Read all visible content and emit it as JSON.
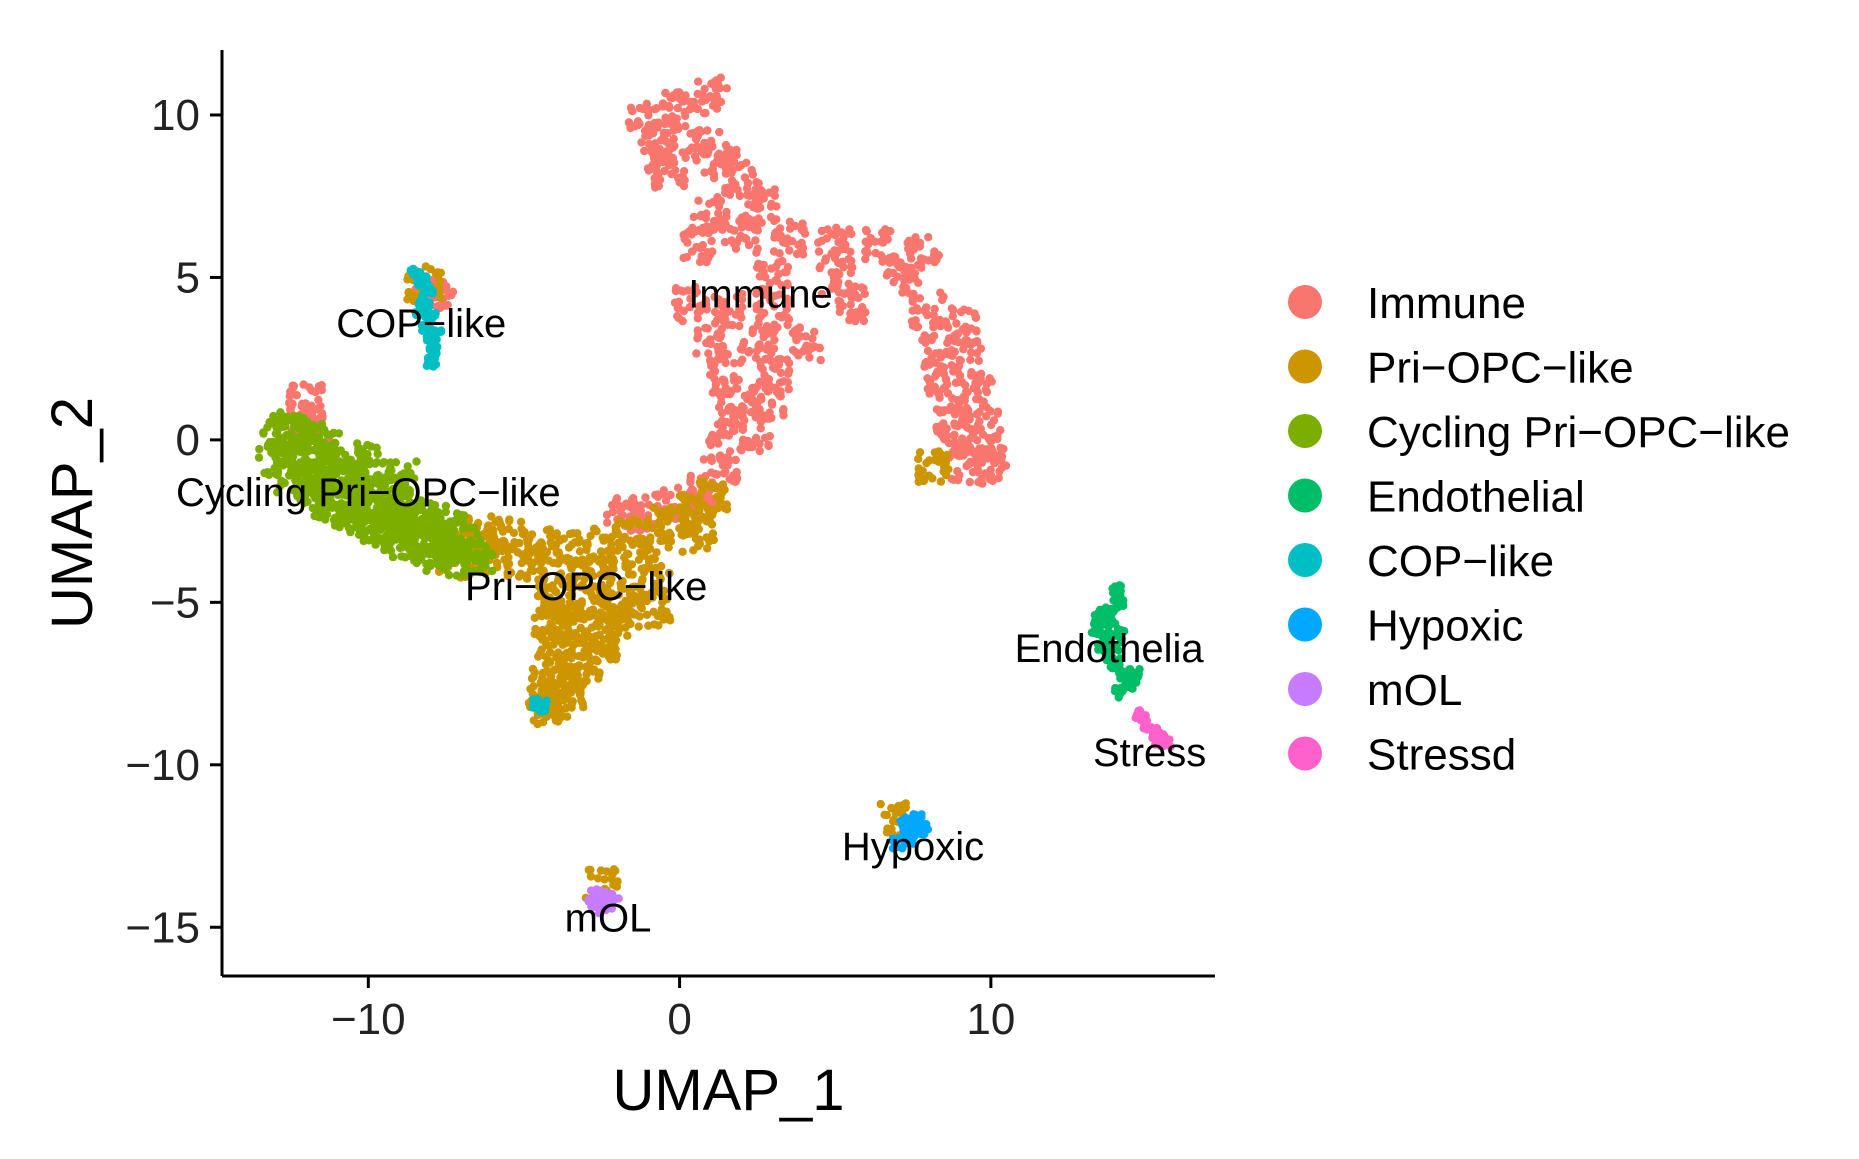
{
  "chart_data": {
    "type": "scatter",
    "title": "",
    "xlabel": "UMAP_1",
    "ylabel": "UMAP_2",
    "xlim": [
      -14.7,
      17.2
    ],
    "ylim": [
      -16.5,
      12.0
    ],
    "xticks": [
      -10,
      0,
      10
    ],
    "yticks": [
      10,
      5,
      0,
      -5,
      -10,
      -15
    ],
    "xtick_labels": [
      "−10",
      "0",
      "10"
    ],
    "ytick_labels": [
      "10",
      "5",
      "0",
      "−5",
      "−10",
      "−15"
    ],
    "legend_position": "right",
    "grid": false,
    "series": [
      {
        "name": "Immune",
        "color": "#F8766D",
        "approx_points": [
          [
            -1.2,
            9.8
          ],
          [
            0.0,
            10.2
          ],
          [
            1.0,
            10.6
          ],
          [
            0.8,
            9.0
          ],
          [
            -0.5,
            9.3
          ],
          [
            1.3,
            8.6
          ],
          [
            2.0,
            8.0
          ],
          [
            2.6,
            7.2
          ],
          [
            1.0,
            7.0
          ],
          [
            0.6,
            6.0
          ],
          [
            2.0,
            6.3
          ],
          [
            3.5,
            6.2
          ],
          [
            5.0,
            6.1
          ],
          [
            6.5,
            6.0
          ],
          [
            7.8,
            5.8
          ],
          [
            3.0,
            5.0
          ],
          [
            5.0,
            5.0
          ],
          [
            7.2,
            5.0
          ],
          [
            0.4,
            4.2
          ],
          [
            1.5,
            4.0
          ],
          [
            3.0,
            4.0
          ],
          [
            5.5,
            4.2
          ],
          [
            8.0,
            4.0
          ],
          [
            9.0,
            3.5
          ],
          [
            1.0,
            3.0
          ],
          [
            2.5,
            3.0
          ],
          [
            4.0,
            3.0
          ],
          [
            8.3,
            2.8
          ],
          [
            9.2,
            2.5
          ],
          [
            1.5,
            2.0
          ],
          [
            3.0,
            2.0
          ],
          [
            8.5,
            1.8
          ],
          [
            9.5,
            1.5
          ],
          [
            1.8,
            1.0
          ],
          [
            2.8,
            1.2
          ],
          [
            8.8,
            0.8
          ],
          [
            9.7,
            0.5
          ],
          [
            1.5,
            0.0
          ],
          [
            2.5,
            0.2
          ],
          [
            8.8,
            0.0
          ],
          [
            9.8,
            -0.2
          ],
          [
            9.2,
            -0.8
          ],
          [
            10.0,
            -0.8
          ],
          [
            1.3,
            -1.0
          ],
          [
            0.8,
            -1.5
          ],
          [
            0.0,
            -2.0
          ],
          [
            -1.2,
            -2.2
          ],
          [
            -1.8,
            -2.3
          ],
          [
            -12.0,
            1.2
          ],
          [
            -12.2,
            0.6
          ],
          [
            -11.8,
            0.4
          ],
          [
            -8.0,
            4.4
          ],
          [
            -7.8,
            4.6
          ],
          [
            -0.7,
            8.7
          ],
          [
            -0.3,
            8.3
          ]
        ],
        "label": "Immune",
        "label_pos": [
          2.6,
          4.5
        ]
      },
      {
        "name": "Pri−OPC−like",
        "color": "#CD9600",
        "approx_points": [
          [
            1.0,
            -1.8
          ],
          [
            0.5,
            -2.2
          ],
          [
            -0.5,
            -2.6
          ],
          [
            -1.5,
            -3.0
          ],
          [
            -2.5,
            -3.2
          ],
          [
            -3.5,
            -3.4
          ],
          [
            -4.5,
            -3.3
          ],
          [
            -5.5,
            -3.0
          ],
          [
            -6.5,
            -2.9
          ],
          [
            -7.0,
            -3.2
          ],
          [
            0.6,
            -3.0
          ],
          [
            -0.8,
            -3.6
          ],
          [
            -2.0,
            -4.0
          ],
          [
            -3.0,
            -4.2
          ],
          [
            -4.0,
            -4.0
          ],
          [
            -5.0,
            -3.8
          ],
          [
            -6.0,
            -3.6
          ],
          [
            -7.2,
            -3.7
          ],
          [
            -1.0,
            -4.5
          ],
          [
            -2.0,
            -5.0
          ],
          [
            -3.0,
            -5.0
          ],
          [
            -4.0,
            -4.8
          ],
          [
            -0.8,
            -5.2
          ],
          [
            -1.8,
            -5.5
          ],
          [
            -2.6,
            -5.8
          ],
          [
            -3.6,
            -5.6
          ],
          [
            -4.2,
            -5.5
          ],
          [
            -2.5,
            -6.3
          ],
          [
            -3.4,
            -6.5
          ],
          [
            -4.0,
            -6.4
          ],
          [
            -3.0,
            -7.0
          ],
          [
            -3.8,
            -7.2
          ],
          [
            -4.2,
            -7.6
          ],
          [
            -4.0,
            -8.0
          ],
          [
            -3.6,
            -7.8
          ],
          [
            -4.3,
            -8.2
          ],
          [
            8.2,
            -0.9
          ],
          [
            7.0,
            -11.7
          ],
          [
            -2.5,
            -13.7
          ],
          [
            -8.2,
            4.8
          ]
        ],
        "label": "Pri−OPC−like",
        "label_pos": [
          -3.0,
          -4.5
        ]
      },
      {
        "name": "Cycling Pri−OPC−like",
        "color": "#7CAE00",
        "approx_points": [
          [
            -13.0,
            0.0
          ],
          [
            -12.5,
            -0.5
          ],
          [
            -12.0,
            -0.8
          ],
          [
            -11.5,
            -1.2
          ],
          [
            -11.0,
            -1.5
          ],
          [
            -10.5,
            -1.8
          ],
          [
            -10.0,
            -2.1
          ],
          [
            -9.5,
            -2.3
          ],
          [
            -9.0,
            -2.5
          ],
          [
            -8.5,
            -2.7
          ],
          [
            -8.0,
            -2.9
          ],
          [
            -7.5,
            -3.0
          ],
          [
            -7.0,
            -3.2
          ],
          [
            -6.5,
            -3.5
          ],
          [
            -12.8,
            -0.6
          ],
          [
            -12.2,
            0.2
          ],
          [
            -11.6,
            -0.2
          ],
          [
            -11.0,
            -0.8
          ],
          [
            -10.4,
            -1.1
          ],
          [
            -9.8,
            -1.5
          ],
          [
            -9.2,
            -1.8
          ],
          [
            -8.6,
            -2.2
          ],
          [
            -8.0,
            -2.4
          ],
          [
            -7.4,
            -2.6
          ],
          [
            -12.4,
            -1.2
          ],
          [
            -11.8,
            -1.6
          ],
          [
            -11.2,
            -2.0
          ],
          [
            -10.6,
            -2.3
          ],
          [
            -10.0,
            -2.6
          ],
          [
            -9.4,
            -2.9
          ],
          [
            -8.8,
            -3.1
          ],
          [
            -8.2,
            -3.3
          ],
          [
            -7.6,
            -3.5
          ],
          [
            -7.0,
            -3.7
          ],
          [
            -12.6,
            0.3
          ],
          [
            -11.4,
            0.0
          ],
          [
            -10.2,
            -0.6
          ],
          [
            -9.0,
            -1.2
          ]
        ],
        "label": "Cycling Pri−OPC−like",
        "label_pos": [
          -10.0,
          -1.6
        ]
      },
      {
        "name": "Endothelial",
        "color": "#00BE67",
        "approx_points": [
          [
            14.0,
            -4.6
          ],
          [
            14.1,
            -5.0
          ],
          [
            13.8,
            -5.3
          ],
          [
            13.5,
            -5.4
          ],
          [
            13.4,
            -5.8
          ],
          [
            13.7,
            -6.0
          ],
          [
            14.0,
            -6.3
          ],
          [
            13.8,
            -6.6
          ],
          [
            14.0,
            -6.9
          ],
          [
            14.3,
            -7.2
          ],
          [
            14.5,
            -7.5
          ],
          [
            14.2,
            -6.0
          ],
          [
            13.9,
            -5.6
          ],
          [
            13.6,
            -6.4
          ],
          [
            14.1,
            -7.8
          ],
          [
            14.6,
            -7.2
          ]
        ],
        "label": "Endothelia",
        "label_pos": [
          13.8,
          -6.4
        ]
      },
      {
        "name": "COP−like",
        "color": "#00BFC4",
        "approx_points": [
          [
            -8.5,
            5.1
          ],
          [
            -8.3,
            4.9
          ],
          [
            -8.1,
            4.6
          ],
          [
            -8.2,
            4.2
          ],
          [
            -8.0,
            3.8
          ],
          [
            -8.1,
            3.4
          ],
          [
            -8.0,
            3.0
          ],
          [
            -7.9,
            2.7
          ],
          [
            -8.0,
            2.4
          ],
          [
            -8.3,
            4.0
          ],
          [
            -7.8,
            3.2
          ],
          [
            -4.6,
            -8.1
          ],
          [
            -4.4,
            -8.2
          ]
        ],
        "label": "COP−like",
        "label_pos": [
          -8.3,
          3.6
        ]
      },
      {
        "name": "Hypoxic",
        "color": "#00A9FF",
        "approx_points": [
          [
            7.2,
            -11.8
          ],
          [
            7.5,
            -11.9
          ],
          [
            7.8,
            -12.0
          ],
          [
            7.4,
            -12.3
          ],
          [
            7.0,
            -12.4
          ],
          [
            7.6,
            -11.7
          ],
          [
            7.3,
            -12.1
          ]
        ],
        "label": "Hypoxic",
        "label_pos": [
          7.5,
          -12.5
        ]
      },
      {
        "name": "mOL",
        "color": "#C77CFF",
        "approx_points": [
          [
            -2.8,
            -14.2
          ],
          [
            -2.5,
            -14.0
          ],
          [
            -2.3,
            -14.3
          ],
          [
            -2.1,
            -14.1
          ],
          [
            -2.5,
            -14.4
          ],
          [
            -2.7,
            -14.0
          ]
        ],
        "label": "mOL",
        "label_pos": [
          -2.3,
          -14.7
        ]
      },
      {
        "name": "Stressd",
        "color": "#FF61CC",
        "approx_points": [
          [
            14.8,
            -8.5
          ],
          [
            15.0,
            -8.8
          ],
          [
            15.2,
            -9.0
          ],
          [
            15.4,
            -9.2
          ],
          [
            15.6,
            -9.3
          ]
        ],
        "label": "Stress",
        "label_pos": [
          15.1,
          -9.6
        ]
      }
    ]
  }
}
